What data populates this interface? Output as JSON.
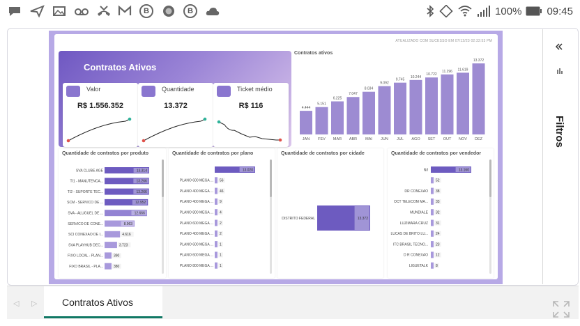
{
  "status_bar": {
    "battery": "100%",
    "time": "09:45"
  },
  "report": {
    "updated": "ATUALIZADO COM SUCESSO EM 07/12/23 02:32:53 PM",
    "header_title": "Contratos Ativos",
    "kpis": [
      {
        "label": "Valor",
        "value": "R$ 1.556.352",
        "icon": "money-icon"
      },
      {
        "label": "Quantidade",
        "value": "13.372",
        "icon": "id-card-icon"
      },
      {
        "label": "Ticket médio",
        "value": "R$ 116",
        "icon": "pie-icon"
      }
    ]
  },
  "filters": {
    "label": "Filtros"
  },
  "tabs": {
    "active": "Contratos Ativos"
  },
  "chart_data": [
    {
      "type": "bar",
      "title": "Contratos ativos",
      "categories": [
        "JAN",
        "FEV",
        "MAR",
        "ABR",
        "MAI",
        "JUN",
        "JUL",
        "AGO",
        "SET",
        "OUT",
        "NOV",
        "DEZ"
      ],
      "values": [
        4444,
        5151,
        6225,
        7047,
        8034,
        9092,
        9745,
        10244,
        10722,
        11296,
        11619,
        13372
      ],
      "labels": [
        "4.444",
        "5.151",
        "6.225",
        "7.047",
        "8.034",
        "9.092",
        "9.745",
        "10.244",
        "10.722",
        "11.296",
        "11.619",
        "13.372"
      ],
      "color": "#9d8bd2"
    },
    {
      "type": "bar",
      "orientation": "horizontal",
      "title": "Quantidade de contratos por produto",
      "categories": [
        "SVA CLUBE AGE",
        "TI1 - MANUTENCA...",
        "TI2 - SUPORTE TEC...",
        "SCM - SERVICO DE ...",
        "SVA - ALUGUEL DE ...",
        "SERVICO DE CONE...",
        "SCI CONEXAO DE I...",
        "SVA PLAYHUB DEC...",
        "FIXO LOCAL - PLAN...",
        "FIXO BRASIL - PLA..."
      ],
      "values": [
        13314,
        13266,
        13266,
        12952,
        12666,
        8963,
        4616,
        3723,
        390,
        380
      ],
      "labels": [
        "13.314",
        "13.266",
        "13.266",
        "12.952",
        "12.666",
        "8.963",
        "4.616",
        "3.723",
        "390",
        "380"
      ]
    },
    {
      "type": "bar",
      "orientation": "horizontal",
      "title": "Quantidade de contratos por plano",
      "categories": [
        "",
        "PLANO 600 MEGA ...",
        "PLANO 400 MEGA ...",
        "PLANO 400 MEGA ...",
        "PLANO 800 MEGA ...",
        "PLANO 600 MEGA ...",
        "PLANO 400 MEGA ...",
        "PLANO 600 MEGA ...",
        "PLANO 600 MEGA ...",
        "PLANO 800 MEGA ..."
      ],
      "values": [
        13020,
        56,
        46,
        9,
        4,
        2,
        2,
        1,
        1,
        1
      ],
      "labels": [
        "13.020",
        "56",
        "46",
        "9",
        "4",
        "2",
        "2",
        "1",
        "1",
        "1"
      ]
    },
    {
      "type": "bar",
      "orientation": "horizontal",
      "title": "Quantidade de contratos por cidade",
      "categories": [
        "DISTRITO FEDERAL"
      ],
      "values": [
        13372
      ],
      "labels": [
        "13.372"
      ]
    },
    {
      "type": "bar",
      "orientation": "horizontal",
      "title": "Quantidade de contratos por vendedor",
      "categories": [
        "N/I",
        "",
        "DR CONEXAO",
        "OCT TELECOM MA...",
        "MUNDIALE",
        "LUZIMARA CRUZ",
        "LUCAS DE BRITO LU...",
        "ITC BRASIL TECNO...",
        "D R CONEXAO",
        "LIGUETALK"
      ],
      "values": [
        13160,
        52,
        38,
        33,
        32,
        31,
        24,
        23,
        12,
        8
      ],
      "labels": [
        "13.160",
        "52",
        "38",
        "33",
        "32",
        "31",
        "24",
        "23",
        "12",
        "8"
      ]
    }
  ]
}
